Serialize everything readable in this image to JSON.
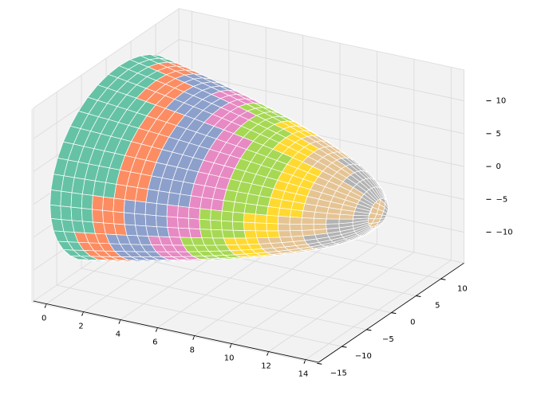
{
  "chart_data": {
    "type": "surface3d",
    "xlim": [
      -0.7,
      14.7
    ],
    "ylim": [
      -14.7,
      14.7
    ],
    "zlim": [
      -14.7,
      14.7
    ],
    "xticks": [
      0,
      2,
      4,
      6,
      8,
      10,
      12,
      14
    ],
    "yticks": [
      {
        "value": -15,
        "label": "−15"
      },
      {
        "value": -10,
        "label": "−10"
      },
      {
        "value": -5,
        "label": "−5"
      },
      0,
      5,
      10
    ],
    "zticks": [
      {
        "value": -10,
        "label": "−10"
      },
      {
        "value": -5,
        "label": "−5"
      },
      0,
      5,
      10
    ],
    "colors": [
      "#66c2a5",
      "#fc8d62",
      "#8da0cb",
      "#e78ac3",
      "#a6d854",
      "#ffd92f",
      "#e5c494",
      "#b3b3b3"
    ],
    "grid": true
  }
}
